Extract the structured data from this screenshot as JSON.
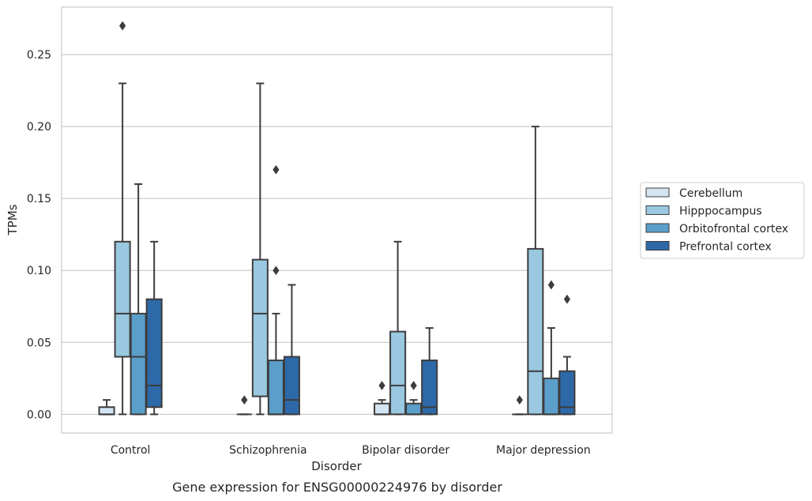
{
  "chart_data": {
    "type": "box",
    "xlabel": "Disorder",
    "ylabel": "TPMs",
    "caption": "Gene expression for ENSG00000224976 by disorder",
    "categories": [
      "Control",
      "Schizophrenia",
      "Bipolar disorder",
      "Major depression"
    ],
    "ylim": [
      -0.013,
      0.283
    ],
    "yticks": [
      "0.00",
      "0.05",
      "0.10",
      "0.15",
      "0.20",
      "0.25"
    ],
    "ytick_values": [
      0,
      0.05,
      0.1,
      0.15,
      0.2,
      0.25
    ],
    "grid": true,
    "legend_position": "right",
    "series": [
      {
        "name": "Cerebellum",
        "color": "#d3e4f3",
        "boxes": [
          {
            "whislo": 0.0,
            "q1": 0.0,
            "median": 0.0,
            "q3": 0.005,
            "whishi": 0.01,
            "fliers": []
          },
          {
            "whislo": 0.0,
            "q1": 0.0,
            "median": 0.0,
            "q3": 0.0,
            "whishi": 0.0,
            "fliers": [
              0.01
            ]
          },
          {
            "whislo": 0.0,
            "q1": 0.0,
            "median": 0.0,
            "q3": 0.0075,
            "whishi": 0.01,
            "fliers": [
              0.02
            ]
          },
          {
            "whislo": 0.0,
            "q1": 0.0,
            "median": 0.0,
            "q3": 0.0,
            "whishi": 0.0,
            "fliers": [
              0.01
            ]
          }
        ]
      },
      {
        "name": "Hipppocampus",
        "color": "#9ac8e0",
        "boxes": [
          {
            "whislo": 0.0,
            "q1": 0.04,
            "median": 0.07,
            "q3": 0.12,
            "whishi": 0.23,
            "fliers": [
              0.27
            ]
          },
          {
            "whislo": 0.0,
            "q1": 0.0125,
            "median": 0.07,
            "q3": 0.1075,
            "whishi": 0.23,
            "fliers": []
          },
          {
            "whislo": 0.0,
            "q1": 0.0,
            "median": 0.02,
            "q3": 0.0575,
            "whishi": 0.12,
            "fliers": []
          },
          {
            "whislo": 0.0,
            "q1": 0.0,
            "median": 0.03,
            "q3": 0.115,
            "whishi": 0.2,
            "fliers": []
          }
        ]
      },
      {
        "name": "Orbitofrontal cortex",
        "color": "#5a9ec9",
        "boxes": [
          {
            "whislo": 0.0,
            "q1": 0.0,
            "median": 0.04,
            "q3": 0.07,
            "whishi": 0.16,
            "fliers": []
          },
          {
            "whislo": 0.0,
            "q1": 0.0,
            "median": 0.0,
            "q3": 0.0375,
            "whishi": 0.07,
            "fliers": [
              0.1,
              0.17
            ]
          },
          {
            "whislo": 0.0,
            "q1": 0.0,
            "median": 0.0,
            "q3": 0.0075,
            "whishi": 0.01,
            "fliers": [
              0.02
            ]
          },
          {
            "whislo": 0.0,
            "q1": 0.0,
            "median": 0.0,
            "q3": 0.025,
            "whishi": 0.06,
            "fliers": [
              0.09
            ]
          }
        ]
      },
      {
        "name": "Prefrontal cortex",
        "color": "#2d69a9",
        "boxes": [
          {
            "whislo": 0.0,
            "q1": 0.005,
            "median": 0.02,
            "q3": 0.08,
            "whishi": 0.12,
            "fliers": []
          },
          {
            "whislo": 0.0,
            "q1": 0.0,
            "median": 0.01,
            "q3": 0.04,
            "whishi": 0.09,
            "fliers": []
          },
          {
            "whislo": 0.0,
            "q1": 0.0,
            "median": 0.005,
            "q3": 0.0375,
            "whishi": 0.06,
            "fliers": []
          },
          {
            "whislo": 0.0,
            "q1": 0.0,
            "median": 0.005,
            "q3": 0.03,
            "whishi": 0.04,
            "fliers": [
              0.08
            ]
          }
        ]
      }
    ]
  }
}
